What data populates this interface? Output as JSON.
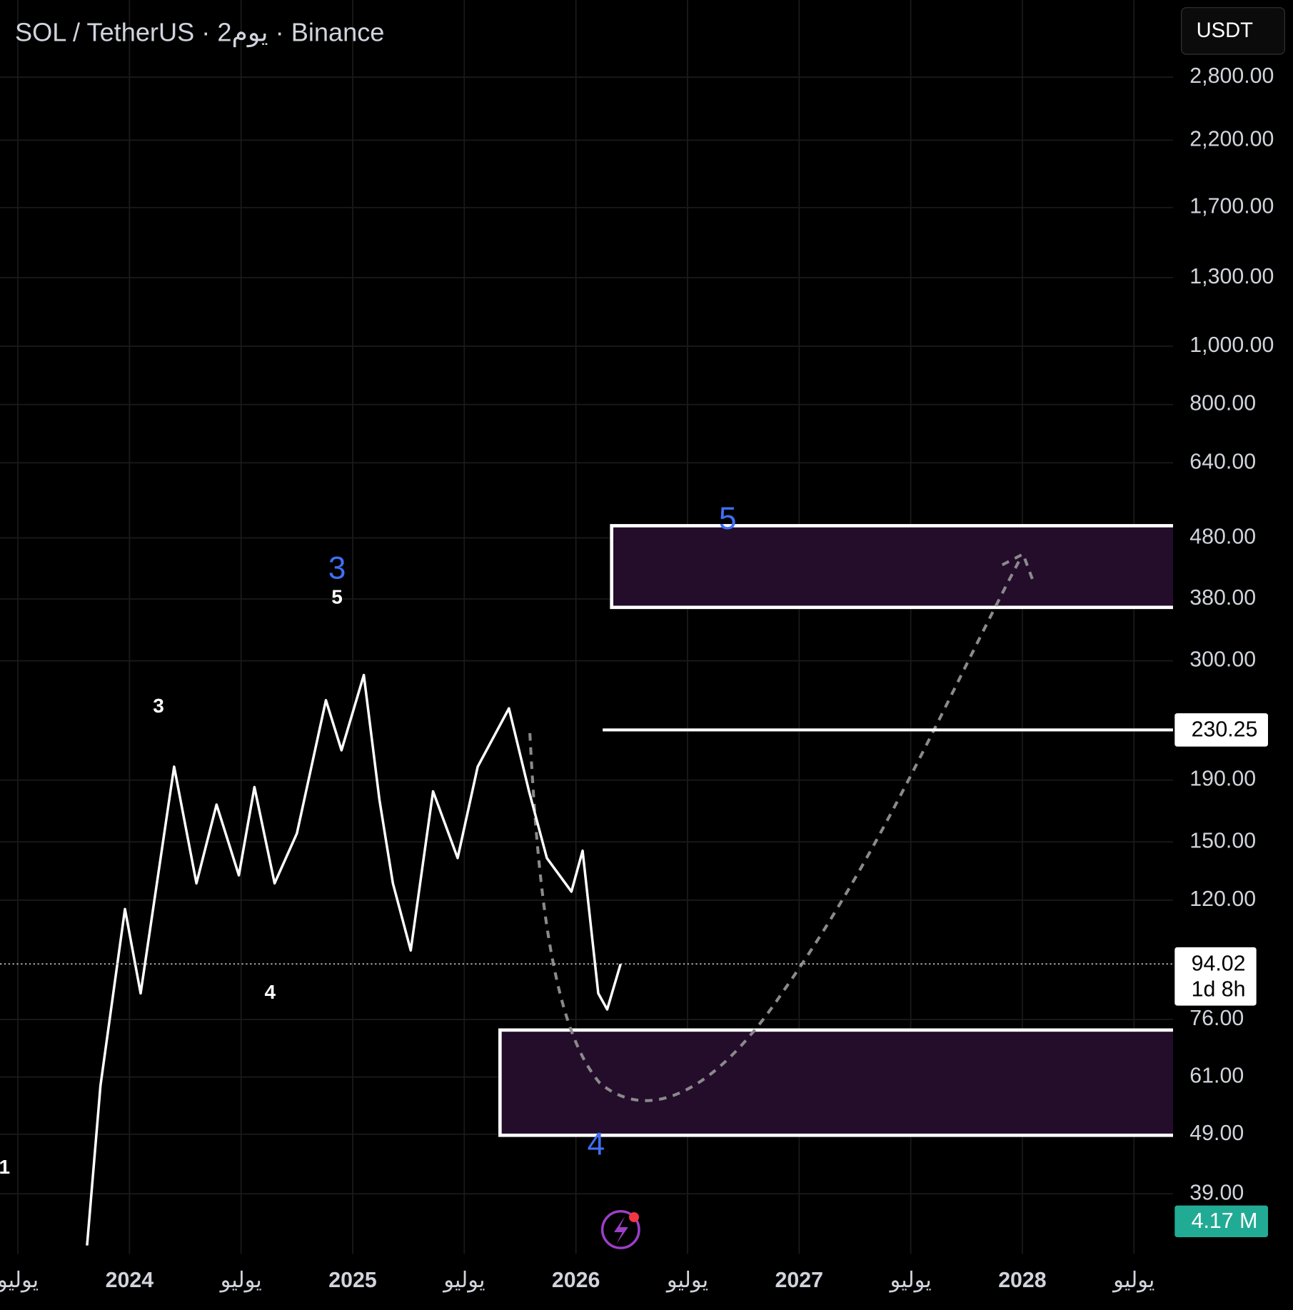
{
  "chart_data": {
    "type": "line",
    "title": "SOL / TetherUS · 2يوم · Binance",
    "currency": "USDT",
    "log_scale": true,
    "grid": true,
    "color": "#ffffff",
    "x": [
      2023.81,
      2023.87,
      2023.98,
      2024.05,
      2024.2,
      2024.3,
      2024.39,
      2024.49,
      2024.56,
      2024.65,
      2024.75,
      2024.88,
      2024.95,
      2025.05,
      2025.12,
      2025.18,
      2025.26,
      2025.36,
      2025.47,
      2025.56,
      2025.7,
      2025.79,
      2025.87,
      2025.98,
      2026.03,
      2026.1,
      2026.14,
      2026.2
    ],
    "series": [
      {
        "name": "SOL",
        "color": "#ffffff",
        "values": [
          32,
          59,
          116,
          84,
          200,
          128,
          173,
          132,
          185,
          128,
          155,
          258,
          213,
          284,
          176,
          128,
          99,
          182,
          141,
          200,
          250,
          182,
          141,
          124,
          145,
          84,
          79,
          94
        ]
      }
    ],
    "xlim": [
      2023.42,
      2028.675
    ],
    "ylim": [
      31,
      3760
    ],
    "xticks": [
      {
        "value": 2023.5,
        "label": "يوليو"
      },
      2024,
      {
        "value": 2024.5,
        "label": "يوليو"
      },
      2025,
      {
        "value": 2025.5,
        "label": "يوليو"
      },
      2026,
      {
        "value": 2026.5,
        "label": "يوليو"
      },
      2027,
      {
        "value": 2027.5,
        "label": "يوليو"
      },
      2028,
      {
        "value": 2028.5,
        "label": "يوليو"
      }
    ],
    "yticks": [
      {
        "value": 2800,
        "label": "2,800.00"
      },
      {
        "value": 2200,
        "label": "2,200.00"
      },
      {
        "value": 1700,
        "label": "1,700.00"
      },
      {
        "value": 1300,
        "label": "1,300.00"
      },
      {
        "value": 1000,
        "label": "1,000.00"
      },
      {
        "value": 800,
        "label": "800.00"
      },
      {
        "value": 640,
        "label": "640.00"
      },
      {
        "value": 480,
        "label": "480.00"
      },
      {
        "value": 380,
        "label": "380.00"
      },
      {
        "value": 300,
        "label": "300.00"
      },
      {
        "value": 190,
        "label": "190.00"
      },
      {
        "value": 150,
        "label": "150.00"
      },
      {
        "value": 120,
        "label": "120.00"
      },
      {
        "value": 76,
        "label": "76.00"
      },
      {
        "value": 61,
        "label": "61.00"
      },
      {
        "value": 49,
        "label": "49.00"
      },
      {
        "value": 39,
        "label": "39.00"
      }
    ],
    "last_price": 94.02,
    "countdown": "1d 8h",
    "level": 230.25,
    "level_start": 2026.12,
    "volume_label": "4.17 M",
    "zones": [
      {
        "top": 503,
        "bottom": 368,
        "start": 2026.16
      },
      {
        "top": 73,
        "bottom": 48.8,
        "start": 2025.66
      }
    ],
    "annotations": [
      {
        "text": "3",
        "x": 2024.93,
        "y": 424,
        "color": "#3f6ff5"
      },
      {
        "text": "5",
        "x": 2024.93,
        "y": 381,
        "color": "#ffffff"
      },
      {
        "text": "3",
        "x": 2024.13,
        "y": 251,
        "color": "#ffffff"
      },
      {
        "text": "4",
        "x": 2024.63,
        "y": 84,
        "color": "#ffffff"
      },
      {
        "text": "5",
        "x": 2026.68,
        "y": 513,
        "color": "#3f6ff5"
      },
      {
        "text": "4",
        "x": 2026.09,
        "y": 46.8,
        "color": "#3f6ff5"
      },
      {
        "text": "1",
        "x": 2023.44,
        "y": 43,
        "color": "#ffffff"
      }
    ]
  }
}
